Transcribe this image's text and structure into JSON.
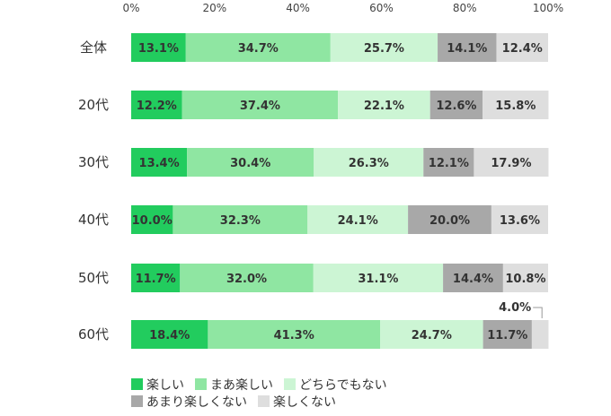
{
  "chart_data": {
    "type": "bar",
    "orientation": "horizontal",
    "stacked": true,
    "title": "",
    "xlabel": "",
    "ylabel": "",
    "xlim": [
      0,
      100
    ],
    "x_ticks": [
      "0%",
      "20%",
      "40%",
      "60%",
      "80%",
      "100%"
    ],
    "categories": [
      "全体",
      "20代",
      "30代",
      "40代",
      "50代",
      "60代"
    ],
    "series": [
      {
        "name": "楽しい",
        "color": "#22cc5e",
        "values": [
          13.1,
          12.2,
          13.4,
          10.0,
          11.7,
          18.4
        ],
        "labels": [
          "13.1%",
          "12.2%",
          "13.4%",
          "10.0%",
          "11.7%",
          "18.4%"
        ]
      },
      {
        "name": "まあ楽しい",
        "color": "#8fe6a2",
        "values": [
          34.7,
          37.4,
          30.4,
          32.3,
          32.0,
          41.3
        ],
        "labels": [
          "34.7%",
          "37.4%",
          "30.4%",
          "32.3%",
          "32.0%",
          "41.3%"
        ]
      },
      {
        "name": "どちらでもない",
        "color": "#ccf5d4",
        "values": [
          25.7,
          22.1,
          26.3,
          24.1,
          31.1,
          24.7
        ],
        "labels": [
          "25.7%",
          "22.1%",
          "26.3%",
          "24.1%",
          "31.1%",
          "24.7%"
        ]
      },
      {
        "name": "あまり楽しくない",
        "color": "#a8a8a8",
        "values": [
          14.1,
          12.6,
          12.1,
          20.0,
          14.4,
          11.7
        ],
        "labels": [
          "14.1%",
          "12.6%",
          "12.1%",
          "20.0%",
          "14.4%",
          "11.7%"
        ]
      },
      {
        "name": "楽しくない",
        "color": "#dedede",
        "values": [
          12.4,
          15.8,
          17.9,
          13.6,
          10.8,
          4.0
        ],
        "labels": [
          "12.4%",
          "15.8%",
          "17.9%",
          "13.6%",
          "10.8%",
          "4.0%"
        ]
      }
    ],
    "callout": {
      "category_index": 5,
      "series_index": 4,
      "text": "4.0%"
    },
    "legend_position": "bottom",
    "grid": false
  }
}
